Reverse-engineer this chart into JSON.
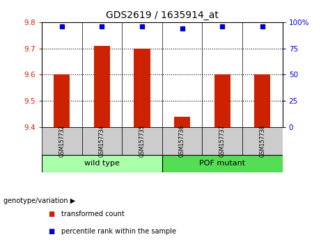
{
  "title": "GDS2619 / 1635914_at",
  "samples": [
    "GSM157732",
    "GSM157734",
    "GSM157735",
    "GSM157736",
    "GSM157737",
    "GSM157738"
  ],
  "bar_values": [
    9.6,
    9.71,
    9.7,
    9.44,
    9.6,
    9.6
  ],
  "percentile_values": [
    96,
    96,
    96,
    94,
    96,
    96
  ],
  "bar_color": "#cc2200",
  "dot_color": "#0000cc",
  "ylim_left": [
    9.4,
    9.8
  ],
  "ylim_right": [
    0,
    100
  ],
  "yticks_left": [
    9.4,
    9.5,
    9.6,
    9.7,
    9.8
  ],
  "yticks_right": [
    0,
    25,
    50,
    75,
    100
  ],
  "ytick_labels_right": [
    "0",
    "25",
    "50",
    "75",
    "100%"
  ],
  "groups": [
    {
      "label": "wild type",
      "indices": [
        0,
        1,
        2
      ],
      "color": "#aaffaa"
    },
    {
      "label": "POF mutant",
      "indices": [
        3,
        4,
        5
      ],
      "color": "#55dd55"
    }
  ],
  "group_label_prefix": "genotype/variation",
  "legend_bar_label": "transformed count",
  "legend_dot_label": "percentile rank within the sample",
  "background_color": "#ffffff",
  "sample_box_color": "#cccccc",
  "bar_bottom": 9.4,
  "dotted_lines": [
    9.5,
    9.6,
    9.7
  ]
}
